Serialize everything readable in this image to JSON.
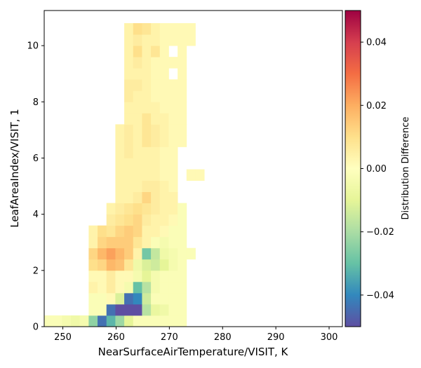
{
  "chart_data": {
    "type": "heatmap",
    "xlabel": "NearSurfaceAirTemperature/VISIT,  K",
    "ylabel": "LeafAreaIndex/VISIT,  1",
    "colorbar_label": "Distribution Difference",
    "xlim": [
      246.5,
      302.5
    ],
    "ylim": [
      0,
      11.25
    ],
    "x_ticks": [
      250,
      260,
      270,
      280,
      290,
      300
    ],
    "y_ticks": [
      0,
      2,
      4,
      6,
      8,
      10
    ],
    "colorbar_range": [
      -0.05,
      0.05
    ],
    "colorbar_ticks": [
      -0.04,
      -0.02,
      0.0,
      0.02,
      0.04
    ],
    "colormap": "Spectral_r",
    "bin_width_x": 1.67,
    "bin_height_y": 0.4,
    "x_bin_start": 246.5,
    "cells": [
      {
        "col": 0,
        "row": 0,
        "value": -0.002
      },
      {
        "col": 1,
        "row": 0,
        "value": -0.002
      },
      {
        "col": 2,
        "row": 0,
        "value": -0.004
      },
      {
        "col": 3,
        "row": 0,
        "value": -0.006
      },
      {
        "col": 4,
        "row": 0,
        "value": -0.004
      },
      {
        "col": 5,
        "row": 0,
        "value": -0.024
      },
      {
        "col": 6,
        "row": 0,
        "value": -0.044
      },
      {
        "col": 7,
        "row": 0,
        "value": -0.032
      },
      {
        "col": 8,
        "row": 0,
        "value": -0.022
      },
      {
        "col": 9,
        "row": 0,
        "value": -0.01
      },
      {
        "col": 10,
        "row": 0,
        "value": -0.002
      },
      {
        "col": 11,
        "row": 0,
        "value": -0.002
      },
      {
        "col": 12,
        "row": 0,
        "value": -0.002
      },
      {
        "col": 13,
        "row": 0,
        "value": -0.002
      },
      {
        "col": 14,
        "row": 0,
        "value": -0.002
      },
      {
        "col": 15,
        "row": 0,
        "value": -0.002
      },
      {
        "col": 5,
        "row": 1,
        "value": -0.002
      },
      {
        "col": 6,
        "row": 1,
        "value": -0.002
      },
      {
        "col": 7,
        "row": 1,
        "value": -0.044
      },
      {
        "col": 8,
        "row": 1,
        "value": -0.05
      },
      {
        "col": 9,
        "row": 1,
        "value": -0.05
      },
      {
        "col": 10,
        "row": 1,
        "value": -0.05
      },
      {
        "col": 11,
        "row": 1,
        "value": -0.018
      },
      {
        "col": 12,
        "row": 1,
        "value": -0.008
      },
      {
        "col": 13,
        "row": 1,
        "value": -0.006
      },
      {
        "col": 14,
        "row": 1,
        "value": -0.002
      },
      {
        "col": 15,
        "row": 1,
        "value": -0.002
      },
      {
        "col": 5,
        "row": 2,
        "value": -0.002
      },
      {
        "col": 6,
        "row": 2,
        "value": -0.002
      },
      {
        "col": 7,
        "row": 2,
        "value": 0.002
      },
      {
        "col": 8,
        "row": 2,
        "value": -0.012
      },
      {
        "col": 9,
        "row": 2,
        "value": -0.044
      },
      {
        "col": 10,
        "row": 2,
        "value": -0.04
      },
      {
        "col": 11,
        "row": 2,
        "value": -0.014
      },
      {
        "col": 12,
        "row": 2,
        "value": -0.002
      },
      {
        "col": 13,
        "row": 2,
        "value": -0.002
      },
      {
        "col": 14,
        "row": 2,
        "value": -0.002
      },
      {
        "col": 15,
        "row": 2,
        "value": -0.002
      },
      {
        "col": 5,
        "row": 3,
        "value": 0.004
      },
      {
        "col": 6,
        "row": 3,
        "value": 0.002
      },
      {
        "col": 7,
        "row": 3,
        "value": 0.006
      },
      {
        "col": 8,
        "row": 3,
        "value": 0.002
      },
      {
        "col": 9,
        "row": 3,
        "value": -0.004
      },
      {
        "col": 10,
        "row": 3,
        "value": -0.03
      },
      {
        "col": 11,
        "row": 3,
        "value": -0.018
      },
      {
        "col": 12,
        "row": 3,
        "value": -0.004
      },
      {
        "col": 13,
        "row": 3,
        "value": -0.002
      },
      {
        "col": 14,
        "row": 3,
        "value": -0.002
      },
      {
        "col": 15,
        "row": 3,
        "value": -0.002
      },
      {
        "col": 5,
        "row": 4,
        "value": 0.002
      },
      {
        "col": 6,
        "row": 4,
        "value": 0.002
      },
      {
        "col": 7,
        "row": 4,
        "value": 0.006
      },
      {
        "col": 8,
        "row": 4,
        "value": 0.002
      },
      {
        "col": 9,
        "row": 4,
        "value": 0.002
      },
      {
        "col": 10,
        "row": 4,
        "value": -0.004
      },
      {
        "col": 11,
        "row": 4,
        "value": -0.01
      },
      {
        "col": 12,
        "row": 4,
        "value": -0.004
      },
      {
        "col": 13,
        "row": 4,
        "value": -0.002
      },
      {
        "col": 14,
        "row": 4,
        "value": -0.002
      },
      {
        "col": 15,
        "row": 4,
        "value": -0.002
      },
      {
        "col": 5,
        "row": 5,
        "value": 0.01
      },
      {
        "col": 6,
        "row": 5,
        "value": 0.012
      },
      {
        "col": 7,
        "row": 5,
        "value": 0.018
      },
      {
        "col": 8,
        "row": 5,
        "value": 0.016
      },
      {
        "col": 9,
        "row": 5,
        "value": 0.008
      },
      {
        "col": 10,
        "row": 5,
        "value": -0.006
      },
      {
        "col": 11,
        "row": 5,
        "value": -0.012
      },
      {
        "col": 12,
        "row": 5,
        "value": -0.014
      },
      {
        "col": 13,
        "row": 5,
        "value": -0.01
      },
      {
        "col": 14,
        "row": 5,
        "value": -0.004
      },
      {
        "col": 15,
        "row": 5,
        "value": -0.002
      },
      {
        "col": 5,
        "row": 6,
        "value": 0.012
      },
      {
        "col": 6,
        "row": 6,
        "value": 0.018
      },
      {
        "col": 7,
        "row": 6,
        "value": 0.022
      },
      {
        "col": 8,
        "row": 6,
        "value": 0.018
      },
      {
        "col": 9,
        "row": 6,
        "value": 0.014
      },
      {
        "col": 10,
        "row": 6,
        "value": 0.004
      },
      {
        "col": 11,
        "row": 6,
        "value": -0.028
      },
      {
        "col": 12,
        "row": 6,
        "value": -0.016
      },
      {
        "col": 13,
        "row": 6,
        "value": -0.006
      },
      {
        "col": 14,
        "row": 6,
        "value": -0.004
      },
      {
        "col": 15,
        "row": 6,
        "value": -0.002
      },
      {
        "col": 16,
        "row": 6,
        "value": -0.002
      },
      {
        "col": 5,
        "row": 7,
        "value": 0.004
      },
      {
        "col": 6,
        "row": 7,
        "value": 0.012
      },
      {
        "col": 7,
        "row": 7,
        "value": 0.014
      },
      {
        "col": 8,
        "row": 7,
        "value": 0.014
      },
      {
        "col": 9,
        "row": 7,
        "value": 0.014
      },
      {
        "col": 10,
        "row": 7,
        "value": 0.008
      },
      {
        "col": 11,
        "row": 7,
        "value": 0.004
      },
      {
        "col": 12,
        "row": 7,
        "value": -0.002
      },
      {
        "col": 13,
        "row": 7,
        "value": -0.004
      },
      {
        "col": 14,
        "row": 7,
        "value": -0.002
      },
      {
        "col": 15,
        "row": 7,
        "value": -0.002
      },
      {
        "col": 5,
        "row": 8,
        "value": 0.004
      },
      {
        "col": 6,
        "row": 8,
        "value": 0.01
      },
      {
        "col": 7,
        "row": 8,
        "value": 0.008
      },
      {
        "col": 8,
        "row": 8,
        "value": 0.012
      },
      {
        "col": 9,
        "row": 8,
        "value": 0.014
      },
      {
        "col": 10,
        "row": 8,
        "value": 0.012
      },
      {
        "col": 11,
        "row": 8,
        "value": 0.004
      },
      {
        "col": 12,
        "row": 8,
        "value": 0.004
      },
      {
        "col": 13,
        "row": 8,
        "value": 0.002
      },
      {
        "col": 14,
        "row": 8,
        "value": -0.002
      },
      {
        "col": 15,
        "row": 8,
        "value": -0.002
      },
      {
        "col": 7,
        "row": 9,
        "value": 0.006
      },
      {
        "col": 8,
        "row": 9,
        "value": 0.008
      },
      {
        "col": 9,
        "row": 9,
        "value": 0.01
      },
      {
        "col": 10,
        "row": 9,
        "value": 0.012
      },
      {
        "col": 11,
        "row": 9,
        "value": 0.006
      },
      {
        "col": 12,
        "row": 9,
        "value": 0.004
      },
      {
        "col": 13,
        "row": 9,
        "value": 0.004
      },
      {
        "col": 14,
        "row": 9,
        "value": 0.002
      },
      {
        "col": 15,
        "row": 9,
        "value": -0.002
      },
      {
        "col": 7,
        "row": 10,
        "value": 0.004
      },
      {
        "col": 8,
        "row": 10,
        "value": 0.006
      },
      {
        "col": 9,
        "row": 10,
        "value": 0.008
      },
      {
        "col": 10,
        "row": 10,
        "value": 0.01
      },
      {
        "col": 11,
        "row": 10,
        "value": 0.008
      },
      {
        "col": 12,
        "row": 10,
        "value": 0.006
      },
      {
        "col": 13,
        "row": 10,
        "value": 0.004
      },
      {
        "col": 14,
        "row": 10,
        "value": 0.004
      },
      {
        "col": 15,
        "row": 10,
        "value": -0.002
      },
      {
        "col": 8,
        "row": 11,
        "value": 0.004
      },
      {
        "col": 9,
        "row": 11,
        "value": 0.004
      },
      {
        "col": 10,
        "row": 11,
        "value": 0.006
      },
      {
        "col": 11,
        "row": 11,
        "value": 0.012
      },
      {
        "col": 12,
        "row": 11,
        "value": 0.006
      },
      {
        "col": 13,
        "row": 11,
        "value": 0.004
      },
      {
        "col": 14,
        "row": 11,
        "value": 0.004
      },
      {
        "col": 8,
        "row": 12,
        "value": 0.004
      },
      {
        "col": 9,
        "row": 12,
        "value": 0.004
      },
      {
        "col": 10,
        "row": 12,
        "value": 0.004
      },
      {
        "col": 11,
        "row": 12,
        "value": 0.006
      },
      {
        "col": 12,
        "row": 12,
        "value": 0.006
      },
      {
        "col": 13,
        "row": 12,
        "value": 0.004
      },
      {
        "col": 14,
        "row": 12,
        "value": 0.002
      },
      {
        "col": 8,
        "row": 13,
        "value": 0.004
      },
      {
        "col": 9,
        "row": 13,
        "value": 0.004
      },
      {
        "col": 10,
        "row": 13,
        "value": 0.004
      },
      {
        "col": 11,
        "row": 13,
        "value": 0.004
      },
      {
        "col": 12,
        "row": 13,
        "value": 0.004
      },
      {
        "col": 13,
        "row": 13,
        "value": 0.002
      },
      {
        "col": 14,
        "row": 13,
        "value": 0.002
      },
      {
        "col": 16,
        "row": 13,
        "value": 0.002
      },
      {
        "col": 17,
        "row": 13,
        "value": 0.002
      },
      {
        "col": 8,
        "row": 14,
        "value": 0.004
      },
      {
        "col": 9,
        "row": 14,
        "value": 0.004
      },
      {
        "col": 10,
        "row": 14,
        "value": 0.004
      },
      {
        "col": 11,
        "row": 14,
        "value": 0.004
      },
      {
        "col": 12,
        "row": 14,
        "value": 0.004
      },
      {
        "col": 13,
        "row": 14,
        "value": 0.002
      },
      {
        "col": 14,
        "row": 14,
        "value": 0.002
      },
      {
        "col": 8,
        "row": 15,
        "value": 0.004
      },
      {
        "col": 9,
        "row": 15,
        "value": 0.006
      },
      {
        "col": 10,
        "row": 15,
        "value": 0.004
      },
      {
        "col": 11,
        "row": 15,
        "value": 0.004
      },
      {
        "col": 12,
        "row": 15,
        "value": 0.004
      },
      {
        "col": 13,
        "row": 15,
        "value": 0.002
      },
      {
        "col": 14,
        "row": 15,
        "value": 0.002
      },
      {
        "col": 8,
        "row": 16,
        "value": 0.004
      },
      {
        "col": 9,
        "row": 16,
        "value": 0.006
      },
      {
        "col": 10,
        "row": 16,
        "value": 0.004
      },
      {
        "col": 11,
        "row": 16,
        "value": 0.008
      },
      {
        "col": 12,
        "row": 16,
        "value": 0.006
      },
      {
        "col": 13,
        "row": 16,
        "value": 0.004
      },
      {
        "col": 14,
        "row": 16,
        "value": 0.002
      },
      {
        "col": 15,
        "row": 16,
        "value": 0.002
      },
      {
        "col": 8,
        "row": 17,
        "value": 0.004
      },
      {
        "col": 9,
        "row": 17,
        "value": 0.006
      },
      {
        "col": 10,
        "row": 17,
        "value": 0.004
      },
      {
        "col": 11,
        "row": 17,
        "value": 0.008
      },
      {
        "col": 12,
        "row": 17,
        "value": 0.006
      },
      {
        "col": 13,
        "row": 17,
        "value": 0.004
      },
      {
        "col": 14,
        "row": 17,
        "value": 0.002
      },
      {
        "col": 15,
        "row": 17,
        "value": 0.002
      },
      {
        "col": 9,
        "row": 18,
        "value": 0.004
      },
      {
        "col": 10,
        "row": 18,
        "value": 0.004
      },
      {
        "col": 11,
        "row": 18,
        "value": 0.008
      },
      {
        "col": 12,
        "row": 18,
        "value": 0.004
      },
      {
        "col": 13,
        "row": 18,
        "value": 0.004
      },
      {
        "col": 14,
        "row": 18,
        "value": 0.002
      },
      {
        "col": 15,
        "row": 18,
        "value": 0.002
      },
      {
        "col": 9,
        "row": 19,
        "value": 0.004
      },
      {
        "col": 10,
        "row": 19,
        "value": 0.004
      },
      {
        "col": 11,
        "row": 19,
        "value": 0.004
      },
      {
        "col": 12,
        "row": 19,
        "value": 0.004
      },
      {
        "col": 13,
        "row": 19,
        "value": 0.002
      },
      {
        "col": 14,
        "row": 19,
        "value": 0.002
      },
      {
        "col": 15,
        "row": 19,
        "value": 0.002
      },
      {
        "col": 9,
        "row": 20,
        "value": 0.006
      },
      {
        "col": 10,
        "row": 20,
        "value": 0.004
      },
      {
        "col": 11,
        "row": 20,
        "value": 0.004
      },
      {
        "col": 12,
        "row": 20,
        "value": 0.002
      },
      {
        "col": 13,
        "row": 20,
        "value": 0.002
      },
      {
        "col": 14,
        "row": 20,
        "value": 0.002
      },
      {
        "col": 15,
        "row": 20,
        "value": 0.002
      },
      {
        "col": 9,
        "row": 21,
        "value": 0.006
      },
      {
        "col": 10,
        "row": 21,
        "value": 0.006
      },
      {
        "col": 11,
        "row": 21,
        "value": 0.004
      },
      {
        "col": 12,
        "row": 21,
        "value": 0.002
      },
      {
        "col": 13,
        "row": 21,
        "value": 0.002
      },
      {
        "col": 14,
        "row": 21,
        "value": 0.002
      },
      {
        "col": 15,
        "row": 21,
        "value": 0.002
      },
      {
        "col": 9,
        "row": 22,
        "value": 0.004
      },
      {
        "col": 10,
        "row": 22,
        "value": 0.004
      },
      {
        "col": 11,
        "row": 22,
        "value": 0.004
      },
      {
        "col": 12,
        "row": 22,
        "value": 0.002
      },
      {
        "col": 13,
        "row": 22,
        "value": 0.002
      },
      {
        "col": 15,
        "row": 22,
        "value": 0.002
      },
      {
        "col": 9,
        "row": 23,
        "value": 0.004
      },
      {
        "col": 10,
        "row": 23,
        "value": 0.006
      },
      {
        "col": 11,
        "row": 23,
        "value": 0.004
      },
      {
        "col": 12,
        "row": 23,
        "value": 0.002
      },
      {
        "col": 13,
        "row": 23,
        "value": 0.002
      },
      {
        "col": 14,
        "row": 23,
        "value": 0.002
      },
      {
        "col": 15,
        "row": 23,
        "value": 0.002
      },
      {
        "col": 9,
        "row": 24,
        "value": 0.004
      },
      {
        "col": 10,
        "row": 24,
        "value": 0.01
      },
      {
        "col": 11,
        "row": 24,
        "value": 0.004
      },
      {
        "col": 12,
        "row": 24,
        "value": 0.008
      },
      {
        "col": 13,
        "row": 24,
        "value": 0.002
      },
      {
        "col": 15,
        "row": 24,
        "value": 0.002
      },
      {
        "col": 9,
        "row": 25,
        "value": 0.004
      },
      {
        "col": 10,
        "row": 25,
        "value": 0.006
      },
      {
        "col": 11,
        "row": 25,
        "value": 0.004
      },
      {
        "col": 12,
        "row": 25,
        "value": 0.004
      },
      {
        "col": 13,
        "row": 25,
        "value": 0.002
      },
      {
        "col": 14,
        "row": 25,
        "value": 0.002
      },
      {
        "col": 15,
        "row": 25,
        "value": 0.002
      },
      {
        "col": 16,
        "row": 25,
        "value": 0.002
      },
      {
        "col": 9,
        "row": 26,
        "value": 0.004
      },
      {
        "col": 10,
        "row": 26,
        "value": 0.01
      },
      {
        "col": 11,
        "row": 26,
        "value": 0.008
      },
      {
        "col": 12,
        "row": 26,
        "value": 0.004
      },
      {
        "col": 13,
        "row": 26,
        "value": 0.002
      },
      {
        "col": 14,
        "row": 26,
        "value": 0.002
      },
      {
        "col": 15,
        "row": 26,
        "value": 0.002
      },
      {
        "col": 16,
        "row": 26,
        "value": 0.002
      }
    ]
  },
  "colorbar": {
    "tick_labels": [
      "−0.04",
      "−0.02",
      "0.00",
      "0.02",
      "0.04"
    ]
  }
}
